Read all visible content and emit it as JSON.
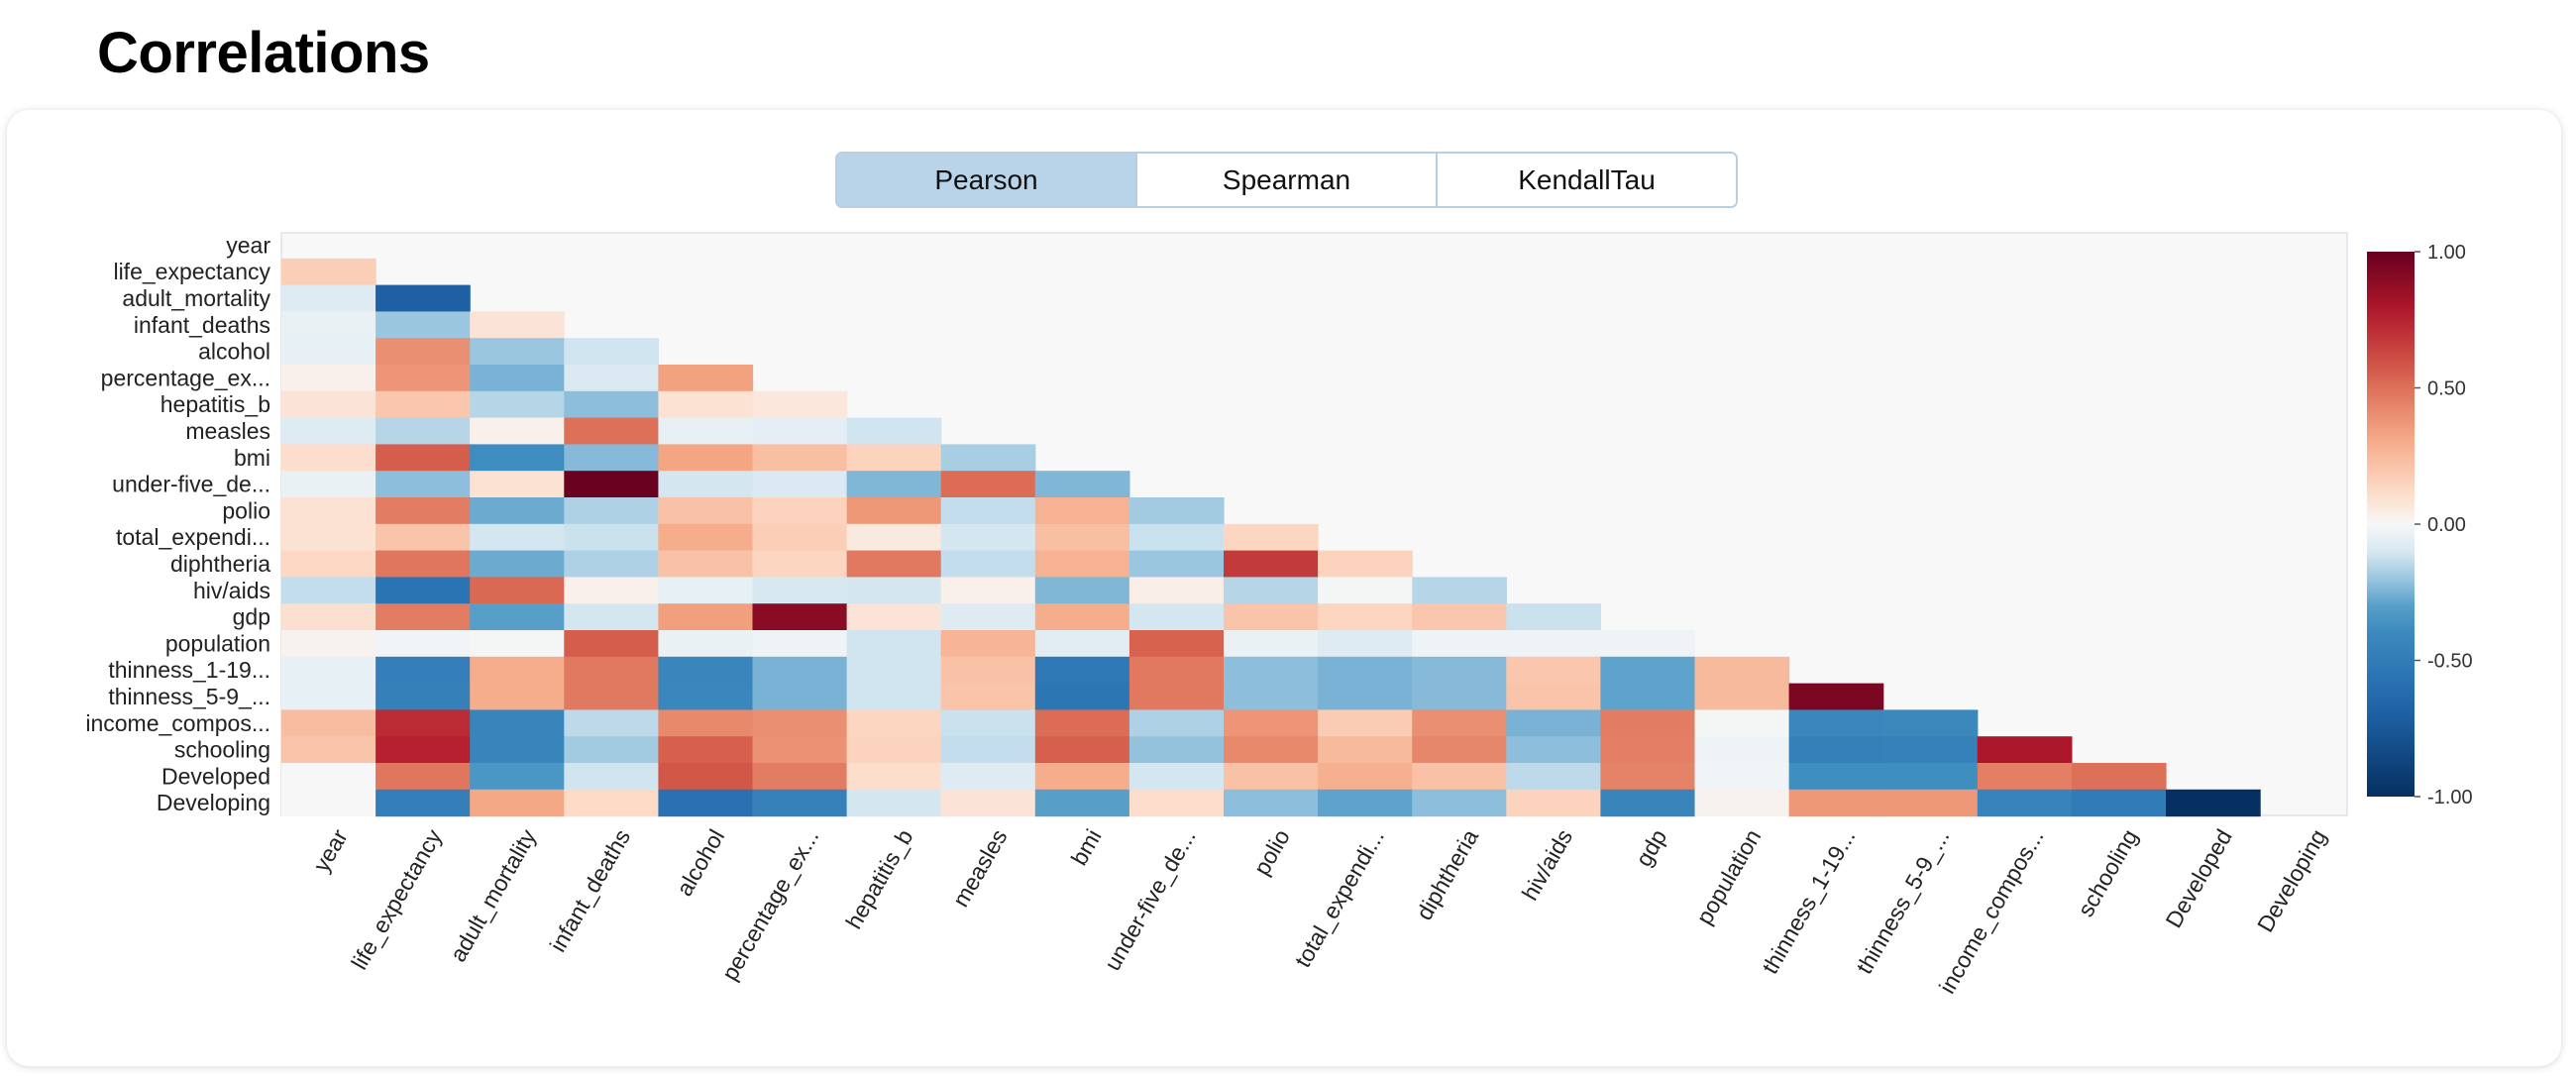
{
  "page": {
    "title": "Correlations"
  },
  "tabs": [
    {
      "label": "Pearson",
      "active": true
    },
    {
      "label": "Spearman",
      "active": false
    },
    {
      "label": "KendallTau",
      "active": false
    }
  ],
  "colors": {
    "neg_strong": "#053061",
    "neg_mid": "#4393c3",
    "neg_light": "#d1e5f0",
    "neutral": "#f7f7f7",
    "pos_light": "#fddbc7",
    "pos_mid": "#d6604d",
    "pos_strong": "#67001f",
    "tab_active": "#b9d3e8",
    "tab_border": "#b7cfe3"
  },
  "chart_data": {
    "type": "heatmap",
    "title": "",
    "variables": [
      "year",
      "life_expectancy",
      "adult_mortality",
      "infant_deaths",
      "alcohol",
      "percentage_ex...",
      "hepatitis_b",
      "measles",
      "bmi",
      "under-five_de...",
      "polio",
      "total_expendi...",
      "diphtheria",
      "hiv/aids",
      "gdp",
      "population",
      "thinness_1-19...",
      "thinness_5-9_...",
      "income_compos...",
      "schooling",
      "Developed",
      "Developing"
    ],
    "colorbar": {
      "range": [
        -1,
        1
      ],
      "ticks": [
        "1.00",
        "0.50",
        "0.00",
        "-0.50",
        "-1.00"
      ],
      "tick_values": [
        1,
        0.5,
        0,
        -0.5,
        -1
      ]
    },
    "matrix": [
      [],
      [
        0.17
      ],
      [
        -0.08,
        -0.7
      ],
      [
        -0.04,
        -0.2,
        0.08
      ],
      [
        -0.05,
        0.4,
        -0.2,
        -0.12
      ],
      [
        0.03,
        0.38,
        -0.25,
        -0.09,
        0.34
      ],
      [
        0.08,
        0.2,
        -0.16,
        -0.22,
        0.09,
        0.07
      ],
      [
        -0.08,
        -0.16,
        0.03,
        0.5,
        -0.05,
        -0.06,
        -0.12
      ],
      [
        0.11,
        0.56,
        -0.38,
        -0.23,
        0.33,
        0.23,
        0.15,
        -0.18
      ],
      [
        -0.04,
        -0.22,
        0.09,
        0.99,
        -0.11,
        -0.09,
        -0.24,
        0.51,
        -0.24
      ],
      [
        0.09,
        0.46,
        -0.27,
        -0.17,
        0.22,
        0.15,
        0.37,
        -0.14,
        0.28,
        -0.19
      ],
      [
        0.09,
        0.21,
        -0.11,
        -0.13,
        0.3,
        0.17,
        0.06,
        -0.11,
        0.23,
        -0.13,
        0.14
      ],
      [
        0.13,
        0.48,
        -0.27,
        -0.17,
        0.22,
        0.14,
        0.47,
        -0.14,
        0.28,
        -0.2,
        0.67,
        0.15
      ],
      [
        -0.14,
        -0.56,
        0.52,
        0.03,
        -0.05,
        -0.1,
        -0.11,
        0.03,
        -0.24,
        0.04,
        -0.16,
        -0.01,
        -0.16
      ],
      [
        0.1,
        0.46,
        -0.3,
        -0.11,
        0.35,
        0.9,
        0.08,
        -0.08,
        0.3,
        -0.11,
        0.21,
        0.14,
        0.2,
        -0.13
      ],
      [
        0.02,
        -0.02,
        -0.01,
        0.56,
        -0.04,
        -0.03,
        -0.12,
        0.27,
        -0.07,
        0.54,
        -0.04,
        -0.08,
        -0.03,
        -0.03,
        -0.03
      ],
      [
        -0.05,
        -0.48,
        0.3,
        0.47,
        -0.43,
        -0.25,
        -0.12,
        0.22,
        -0.53,
        0.47,
        -0.22,
        -0.25,
        -0.23,
        0.2,
        -0.29,
        0.25
      ],
      [
        -0.05,
        -0.47,
        0.3,
        0.47,
        -0.42,
        -0.25,
        -0.12,
        0.21,
        -0.54,
        0.47,
        -0.22,
        -0.25,
        -0.23,
        0.21,
        -0.29,
        0.25,
        0.94
      ],
      [
        0.24,
        0.72,
        -0.44,
        -0.15,
        0.42,
        0.4,
        0.14,
        -0.13,
        0.51,
        -0.17,
        0.38,
        0.18,
        0.4,
        -0.25,
        0.46,
        -0.01,
        -0.42,
        -0.41
      ],
      [
        0.21,
        0.75,
        -0.44,
        -0.19,
        0.55,
        0.39,
        0.15,
        -0.14,
        0.55,
        -0.21,
        0.42,
        0.25,
        0.43,
        -0.22,
        0.45,
        -0.03,
        -0.47,
        -0.46,
        0.8
      ],
      [
        0.0,
        0.48,
        -0.32,
        -0.12,
        0.58,
        0.46,
        0.11,
        -0.08,
        0.3,
        -0.11,
        0.22,
        0.29,
        0.22,
        -0.15,
        0.44,
        -0.02,
        -0.37,
        -0.37,
        0.45,
        0.5
      ],
      [
        0.0,
        -0.48,
        0.32,
        0.12,
        -0.58,
        -0.46,
        -0.11,
        0.08,
        -0.3,
        0.11,
        -0.22,
        -0.29,
        -0.22,
        0.15,
        -0.44,
        0.02,
        0.37,
        0.37,
        -0.45,
        -0.5,
        -1.0
      ]
    ]
  }
}
